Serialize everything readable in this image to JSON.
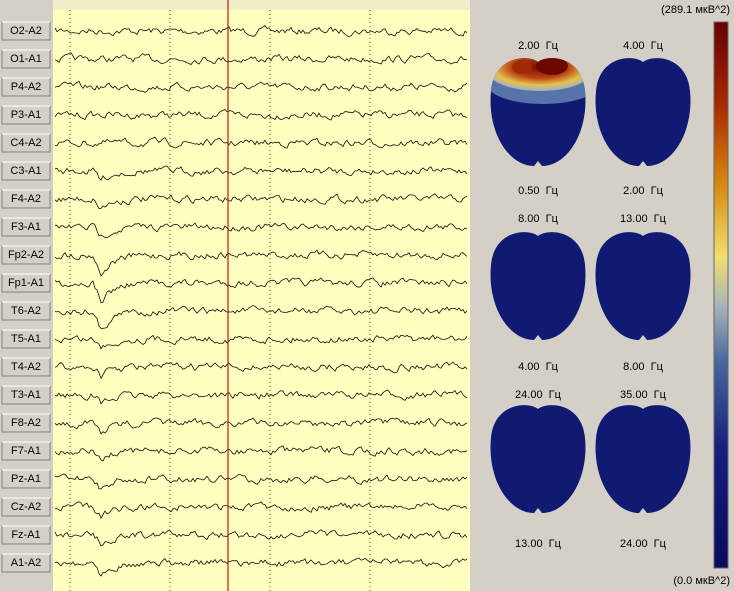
{
  "channels": [
    "O2-A2",
    "O1-A1",
    "P4-A2",
    "P3-A1",
    "C4-A2",
    "C3-A1",
    "F4-A2",
    "F3-A1",
    "Fp2-A2",
    "Fp1-A1",
    "T6-A2",
    "T5-A1",
    "T4-A2",
    "T3-A1",
    "F8-A2",
    "F7-A1",
    "Pz-A1",
    "Cz-A2",
    "Fz-A1",
    "A1-A2"
  ],
  "maps": [
    {
      "top": "2.00  Гц",
      "bottom": "0.50  Гц"
    },
    {
      "top": "4.00  Гц",
      "bottom": "2.00  Гц"
    },
    {
      "top": "8.00  Гц",
      "bottom": "4.00  Гц"
    },
    {
      "top": "13.00  Гц",
      "bottom": "8.00  Гц"
    },
    {
      "top": "24.00  Гц",
      "bottom": "13.00  Гц"
    },
    {
      "top": "35.00  Гц",
      "bottom": "24.00  Гц"
    }
  ],
  "colorbar": {
    "max_label": "(289.1 мкВ^2)",
    "min_label": "(0.0 мкВ^2)"
  }
}
